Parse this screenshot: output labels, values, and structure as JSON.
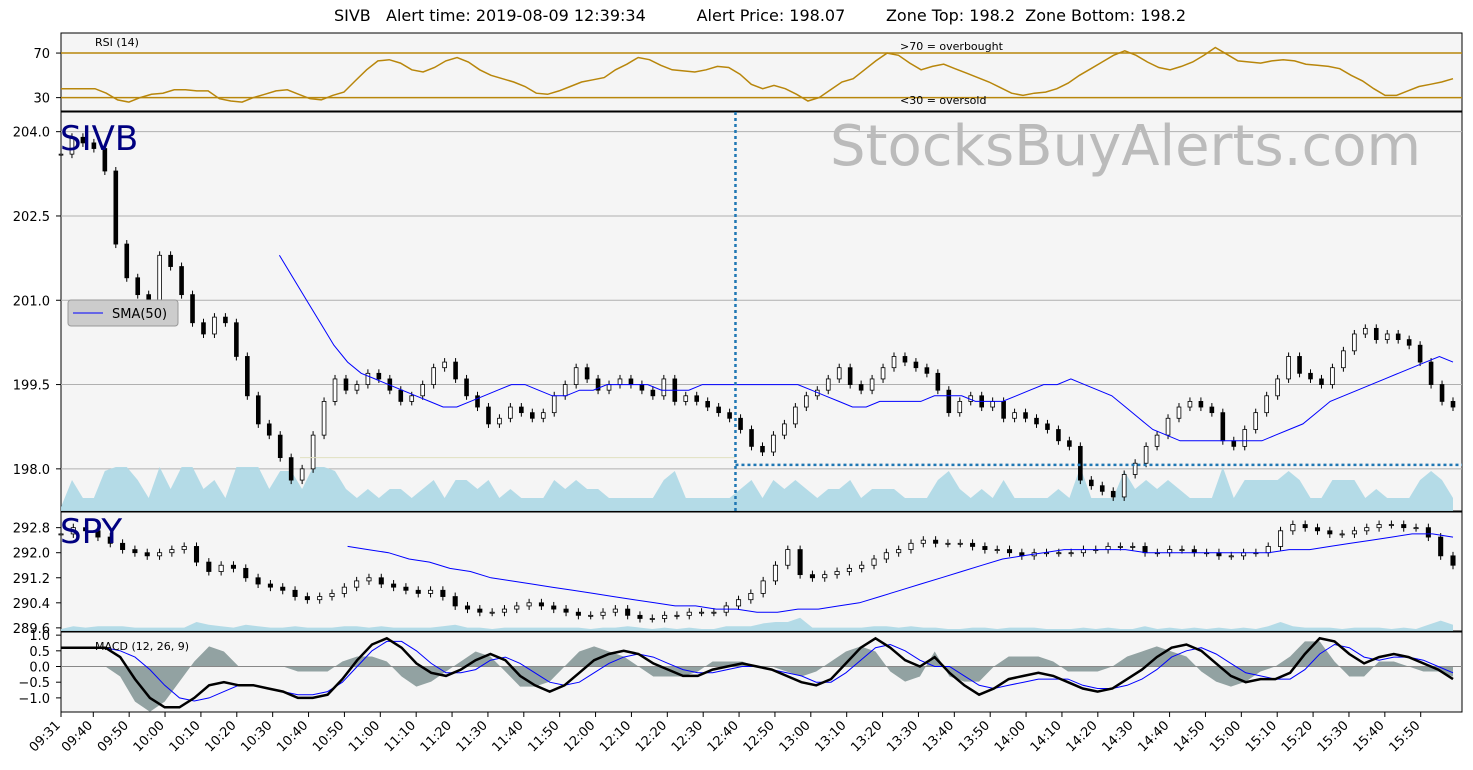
{
  "header": {
    "title": "SIVB   Alert time: 2019-08-09 12:39:34          Alert Price: 198.07        Zone Top: 198.2  Zone Bottom: 198.2"
  },
  "watermark": "StocksBuyAlerts.com",
  "colors": {
    "rsi_line": "#b8860b",
    "sma": "#0000ff",
    "volume": "#add8e6",
    "alert_line": "#1f77b4",
    "macd_line": "#000000",
    "signal_line": "#0000ff",
    "histogram": "#2f4f4f",
    "panel_bg": "#f5f5f5",
    "ticker_label": "#000080",
    "watermark": "#bbbbbb"
  },
  "chart_data": [
    {
      "panel": "rsi",
      "type": "line",
      "label": "RSI (14)",
      "yticks": [
        30,
        70
      ],
      "ylim": [
        18,
        88
      ],
      "annotations": [
        ">70 = overbought",
        "<30 = oversold"
      ],
      "levels": [
        30,
        70
      ],
      "x_range": [
        "09:31",
        "15:59"
      ],
      "values": [
        38,
        38,
        38,
        38,
        34,
        28,
        26,
        30,
        33,
        34,
        37,
        37,
        36,
        36,
        29,
        27,
        26,
        30,
        33,
        36,
        37,
        33,
        29,
        28,
        32,
        35,
        45,
        55,
        63,
        64,
        61,
        55,
        53,
        57,
        63,
        66,
        62,
        55,
        50,
        47,
        44,
        40,
        34,
        33,
        36,
        40,
        44,
        46,
        48,
        55,
        60,
        66,
        64,
        59,
        55,
        54,
        53,
        55,
        58,
        57,
        51,
        42,
        38,
        41,
        38,
        33,
        27,
        30,
        37,
        44,
        47,
        55,
        63,
        70,
        68,
        61,
        55,
        58,
        60,
        56,
        52,
        48,
        44,
        39,
        34,
        32,
        34,
        35,
        38,
        43,
        50,
        56,
        62,
        68,
        72,
        68,
        62,
        57,
        55,
        58,
        62,
        68,
        75,
        69,
        63,
        62,
        61,
        63,
        64,
        63,
        60,
        59,
        58,
        56,
        50,
        45,
        38,
        32,
        32,
        36,
        40,
        42,
        44,
        47
      ],
      "rendered_as": "polyline"
    },
    {
      "panel": "price",
      "type": "line",
      "ticker": "SIVB",
      "yticks": [
        "204.0",
        "202.5",
        "201.0",
        "199.5",
        "198.0"
      ],
      "ylim": [
        197.25,
        204.35
      ],
      "legend": "SMA(50)",
      "legend_position": "left",
      "alert_time": "12:39",
      "alert_price": 198.07,
      "horizontal_reference": 198.2,
      "close": [
        203.6,
        203.9,
        203.8,
        203.7,
        203.3,
        202.0,
        201.4,
        201.1,
        201.0,
        201.8,
        201.6,
        201.1,
        200.6,
        200.4,
        200.7,
        200.6,
        200.0,
        199.3,
        198.8,
        198.6,
        198.2,
        197.8,
        198.0,
        198.6,
        199.2,
        199.6,
        199.4,
        199.5,
        199.7,
        199.6,
        199.4,
        199.2,
        199.3,
        199.5,
        199.8,
        199.9,
        199.6,
        199.3,
        199.1,
        198.8,
        198.9,
        199.1,
        199.0,
        198.9,
        199.0,
        199.3,
        199.5,
        199.8,
        199.6,
        199.4,
        199.5,
        199.6,
        199.5,
        199.4,
        199.3,
        199.6,
        199.2,
        199.3,
        199.2,
        199.1,
        199.0,
        198.9,
        198.7,
        198.4,
        198.3,
        198.6,
        198.8,
        199.1,
        199.3,
        199.4,
        199.6,
        199.8,
        199.5,
        199.4,
        199.6,
        199.8,
        200.0,
        199.9,
        199.8,
        199.7,
        199.4,
        199.0,
        199.2,
        199.3,
        199.1,
        199.2,
        198.9,
        199.0,
        198.9,
        198.8,
        198.7,
        198.5,
        198.4,
        197.8,
        197.7,
        197.6,
        197.5,
        197.9,
        198.1,
        198.4,
        198.6,
        198.9,
        199.1,
        199.2,
        199.1,
        199.0,
        198.5,
        198.4,
        198.7,
        199.0,
        199.3,
        199.6,
        200.0,
        199.7,
        199.6,
        199.5,
        199.8,
        200.1,
        200.4,
        200.5,
        200.3,
        200.4,
        200.3,
        200.2,
        199.9,
        199.5,
        199.2,
        199.1
      ],
      "sma_50": [
        null,
        null,
        null,
        null,
        null,
        null,
        null,
        null,
        null,
        null,
        null,
        null,
        null,
        null,
        null,
        null,
        201.8,
        201.4,
        201.0,
        200.6,
        200.2,
        199.9,
        199.7,
        199.6,
        199.5,
        199.4,
        199.3,
        199.2,
        199.1,
        199.1,
        199.2,
        199.3,
        199.4,
        199.5,
        199.5,
        199.4,
        199.3,
        199.3,
        199.4,
        199.4,
        199.5,
        199.5,
        199.5,
        199.5,
        199.4,
        199.4,
        199.4,
        199.5,
        199.5,
        199.5,
        199.5,
        199.5,
        199.5,
        199.5,
        199.5,
        199.4,
        199.3,
        199.2,
        199.1,
        199.1,
        199.2,
        199.2,
        199.2,
        199.2,
        199.3,
        199.3,
        199.3,
        199.2,
        199.2,
        199.2,
        199.3,
        199.4,
        199.5,
        199.5,
        199.6,
        199.5,
        199.4,
        199.3,
        199.1,
        198.9,
        198.7,
        198.6,
        198.5,
        198.5,
        198.5,
        198.5,
        198.5,
        198.5,
        198.5,
        198.6,
        198.7,
        198.8,
        199.0,
        199.2,
        199.3,
        199.4,
        199.5,
        199.6,
        199.7,
        199.8,
        199.9,
        200.0,
        199.9
      ],
      "rendered_as": "candles"
    },
    {
      "panel": "spy",
      "type": "line",
      "ticker": "SPY",
      "yticks": [
        "292.8",
        "292.0",
        "291.2",
        "290.4",
        "289.6"
      ],
      "ylim": [
        289.5,
        293.3
      ],
      "close": [
        292.6,
        292.8,
        292.7,
        292.5,
        292.3,
        292.1,
        292.0,
        291.9,
        292.0,
        292.1,
        292.2,
        291.7,
        291.4,
        291.6,
        291.5,
        291.2,
        291.0,
        290.9,
        290.8,
        290.6,
        290.5,
        290.6,
        290.7,
        290.9,
        291.1,
        291.2,
        291.0,
        290.9,
        290.8,
        290.7,
        290.8,
        290.6,
        290.3,
        290.2,
        290.1,
        290.1,
        290.2,
        290.3,
        290.4,
        290.3,
        290.2,
        290.1,
        290.0,
        290.0,
        290.1,
        290.2,
        290.0,
        289.9,
        289.9,
        290.0,
        290.0,
        290.1,
        290.1,
        290.1,
        290.3,
        290.5,
        290.7,
        291.1,
        291.6,
        292.1,
        291.3,
        291.2,
        291.3,
        291.4,
        291.5,
        291.6,
        291.8,
        292.0,
        292.1,
        292.3,
        292.4,
        292.3,
        292.3,
        292.3,
        292.2,
        292.1,
        292.1,
        292.0,
        291.9,
        292.0,
        292.0,
        292.0,
        292.0,
        292.1,
        292.1,
        292.2,
        292.2,
        292.2,
        292.0,
        292.0,
        292.1,
        292.1,
        292.0,
        292.0,
        291.9,
        291.9,
        292.0,
        292.0,
        292.2,
        292.7,
        292.9,
        292.8,
        292.7,
        292.6,
        292.6,
        292.7,
        292.8,
        292.9,
        292.9,
        292.8,
        292.8,
        292.5,
        291.9,
        291.6
      ],
      "sma_50": [
        null,
        null,
        null,
        null,
        null,
        null,
        null,
        null,
        null,
        null,
        null,
        null,
        null,
        null,
        292.2,
        292.1,
        292.0,
        291.8,
        291.7,
        291.5,
        291.4,
        291.2,
        291.1,
        291.0,
        290.9,
        290.8,
        290.7,
        290.6,
        290.5,
        290.4,
        290.3,
        290.3,
        290.2,
        290.2,
        290.1,
        290.1,
        290.2,
        290.2,
        290.3,
        290.4,
        290.6,
        290.8,
        291.0,
        291.2,
        291.4,
        291.6,
        291.8,
        291.9,
        292.0,
        292.1,
        292.1,
        292.1,
        292.1,
        292.0,
        292.0,
        292.0,
        292.0,
        292.0,
        292.0,
        292.0,
        292.1,
        292.1,
        292.2,
        292.3,
        292.4,
        292.5,
        292.6,
        292.6,
        292.5
      ],
      "rendered_as": "candles"
    },
    {
      "panel": "macd",
      "type": "line",
      "label": "MACD (12, 26, 9)",
      "yticks": [
        "1.0",
        "0.5",
        "0.0",
        "−0.5",
        "−1.0"
      ],
      "ylim": [
        -1.45,
        1.1
      ],
      "macd": [
        0.6,
        0.6,
        0.6,
        0.6,
        0.3,
        -0.4,
        -1.0,
        -1.3,
        -1.3,
        -1.0,
        -0.6,
        -0.5,
        -0.6,
        -0.6,
        -0.7,
        -0.8,
        -1.0,
        -1.0,
        -0.9,
        -0.4,
        0.2,
        0.7,
        0.9,
        0.6,
        0.1,
        -0.2,
        -0.3,
        -0.1,
        0.2,
        0.4,
        0.2,
        -0.3,
        -0.6,
        -0.8,
        -0.6,
        -0.2,
        0.2,
        0.4,
        0.5,
        0.4,
        0.1,
        -0.1,
        -0.3,
        -0.3,
        -0.1,
        0.0,
        0.1,
        0.0,
        -0.1,
        -0.3,
        -0.5,
        -0.6,
        -0.4,
        0.1,
        0.6,
        0.9,
        0.6,
        0.2,
        0.0,
        0.3,
        -0.2,
        -0.6,
        -0.9,
        -0.7,
        -0.4,
        -0.3,
        -0.2,
        -0.3,
        -0.5,
        -0.7,
        -0.8,
        -0.7,
        -0.4,
        -0.1,
        0.3,
        0.6,
        0.7,
        0.5,
        0.1,
        -0.3,
        -0.5,
        -0.4,
        -0.4,
        -0.2,
        0.4,
        0.9,
        0.8,
        0.4,
        0.1,
        0.3,
        0.4,
        0.3,
        0.1,
        -0.1,
        -0.4
      ],
      "signal": [
        0.6,
        0.6,
        0.6,
        0.6,
        0.5,
        0.3,
        -0.1,
        -0.6,
        -1.0,
        -1.1,
        -1.0,
        -0.8,
        -0.6,
        -0.6,
        -0.7,
        -0.8,
        -0.9,
        -0.9,
        -0.8,
        -0.5,
        0.0,
        0.5,
        0.8,
        0.8,
        0.5,
        0.1,
        -0.2,
        -0.2,
        -0.1,
        0.2,
        0.3,
        0.1,
        -0.2,
        -0.5,
        -0.6,
        -0.5,
        -0.2,
        0.1,
        0.3,
        0.4,
        0.3,
        0.1,
        -0.1,
        -0.2,
        -0.2,
        -0.1,
        0.0,
        0.0,
        -0.1,
        -0.2,
        -0.3,
        -0.5,
        -0.5,
        -0.2,
        0.2,
        0.6,
        0.7,
        0.5,
        0.2,
        0.0,
        0.0,
        -0.3,
        -0.6,
        -0.7,
        -0.6,
        -0.5,
        -0.4,
        -0.4,
        -0.4,
        -0.6,
        -0.7,
        -0.7,
        -0.6,
        -0.4,
        -0.1,
        0.3,
        0.5,
        0.6,
        0.4,
        0.1,
        -0.2,
        -0.3,
        -0.4,
        -0.4,
        -0.1,
        0.4,
        0.7,
        0.6,
        0.3,
        0.2,
        0.3,
        0.3,
        0.2,
        0.0,
        -0.2
      ],
      "rendered_as": "lines+histogram"
    }
  ],
  "x_axis": {
    "ticks": [
      "09:31",
      "09:40",
      "09:50",
      "10:00",
      "10:10",
      "10:20",
      "10:30",
      "10:40",
      "10:50",
      "11:00",
      "11:10",
      "11:20",
      "11:30",
      "11:40",
      "11:50",
      "12:00",
      "12:10",
      "12:20",
      "12:30",
      "12:40",
      "12:50",
      "13:00",
      "13:10",
      "13:20",
      "13:30",
      "13:40",
      "13:50",
      "14:00",
      "14:10",
      "14:20",
      "14:30",
      "14:40",
      "14:50",
      "15:00",
      "15:10",
      "15:20",
      "15:30",
      "15:40",
      "15:50"
    ]
  }
}
